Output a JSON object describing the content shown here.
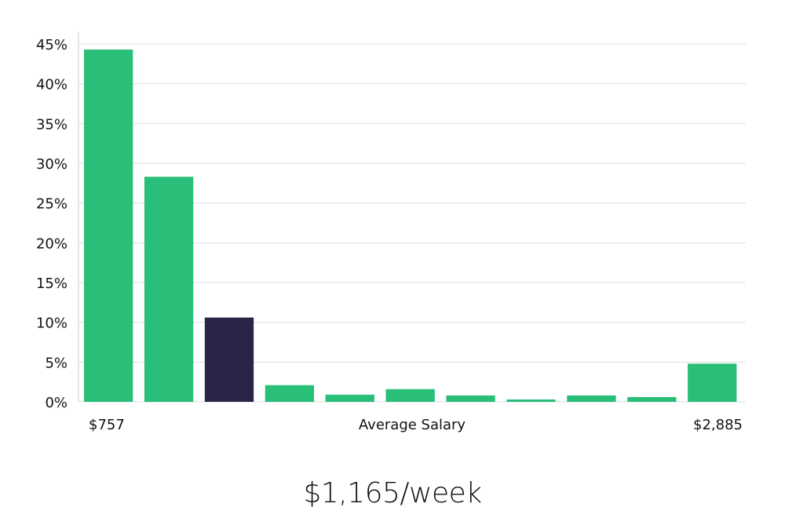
{
  "chart_data": {
    "type": "bar",
    "values": [
      44.3,
      28.3,
      10.6,
      2.1,
      0.9,
      1.6,
      0.8,
      0.3,
      0.8,
      0.6,
      4.8
    ],
    "highlight_index": 2,
    "ylim": [
      0,
      45
    ],
    "yticks": [
      0,
      5,
      10,
      15,
      20,
      25,
      30,
      35,
      40,
      45
    ],
    "ytick_suffix": "%",
    "grid": true,
    "x_min_label": "$757",
    "x_max_label": "$2,885",
    "xlabel": "Average Salary",
    "colors": {
      "bar": "#2abf78",
      "highlight": "#2a2547",
      "grid": "#dadde0",
      "axis": "#c8ccd0"
    }
  },
  "summary": "$1,165/week"
}
